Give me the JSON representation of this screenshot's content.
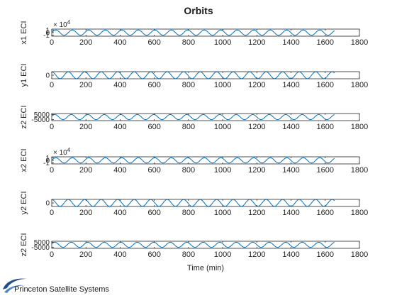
{
  "chart_data": {
    "type": "line",
    "title": "Orbits",
    "xlabel": "Time (min)",
    "xlim": [
      0,
      1800
    ],
    "xticks": [
      0,
      200,
      400,
      600,
      800,
      1000,
      1200,
      1400,
      1600,
      1800
    ],
    "x_end": 1655,
    "series_color": "#0072BD",
    "panels": [
      {
        "ylabel": "x1 ECI",
        "yticks": [
          "1",
          "0",
          "-1"
        ],
        "ytick_values": [
          1,
          0,
          -1
        ],
        "ylim": [
          -1.35,
          1.35
        ],
        "exponent_base": "× 10",
        "exponent_power": "4",
        "amplitude": 1,
        "period": 96.5,
        "phase": 0
      },
      {
        "ylabel": "y1 ECI",
        "yticks": [
          "0"
        ],
        "ytick_values": [
          0
        ],
        "ylim": [
          -1.05,
          1.05
        ],
        "amplitude": 1,
        "period": 96.5,
        "phase": 1.5708
      },
      {
        "ylabel": "z2 ECI",
        "yticks": [
          "5000",
          "-5000"
        ],
        "ytick_values": [
          5000,
          -5000
        ],
        "ylim": [
          -7000,
          7000
        ],
        "amplitude": 5000,
        "period": 96.5,
        "phase": 0.4
      },
      {
        "ylabel": "x2 ECI",
        "yticks": [
          "1",
          "0",
          "-1"
        ],
        "ytick_values": [
          1,
          0,
          -1
        ],
        "ylim": [
          -1.35,
          1.35
        ],
        "exponent_base": "× 10",
        "exponent_power": "4",
        "amplitude": 1,
        "period": 96.5,
        "phase": 0
      },
      {
        "ylabel": "y2 ECI",
        "yticks": [
          "0"
        ],
        "ytick_values": [
          0
        ],
        "ylim": [
          -1.05,
          1.05
        ],
        "amplitude": 1,
        "period": 96.5,
        "phase": 1.5708
      },
      {
        "ylabel": "z2 ECI",
        "yticks": [
          "5000",
          "-5000"
        ],
        "ytick_values": [
          5000,
          -5000
        ],
        "ylim": [
          -7000,
          7000
        ],
        "amplitude": 5000,
        "period": 96.5,
        "phase": 0.4
      }
    ]
  },
  "logo": {
    "text": "Princeton Satellite Systems",
    "color": "#1f4e8c"
  }
}
